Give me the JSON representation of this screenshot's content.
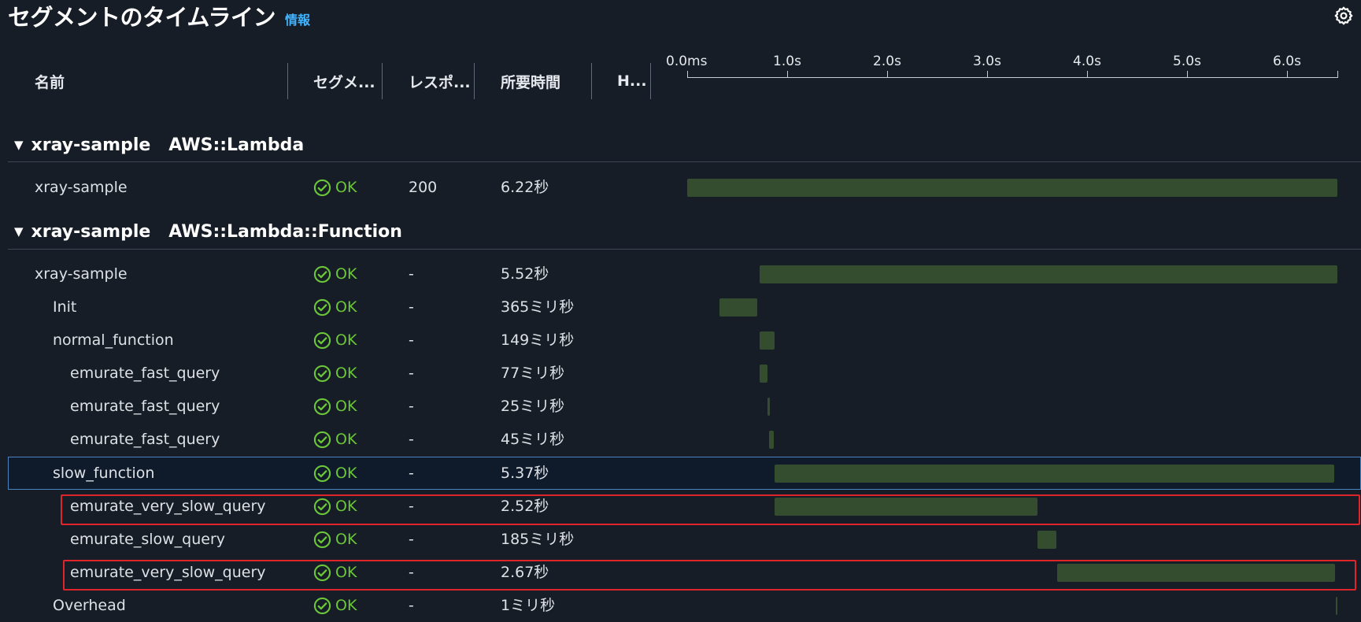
{
  "header": {
    "title": "セグメントのタイムライン",
    "info_link": "情報",
    "settings_icon": "gear-icon"
  },
  "columns": [
    "名前",
    "セグメ...",
    "レスポ...",
    "所要時間",
    "H..."
  ],
  "timeline": {
    "ticks": [
      "0.0ms",
      "1.0s",
      "2.0s",
      "3.0s",
      "4.0s",
      "5.0s",
      "6.0s"
    ],
    "max_seconds": 6.5
  },
  "groups": [
    {
      "name": "xray-sample",
      "type": "AWS::Lambda"
    },
    {
      "name": "xray-sample",
      "type": "AWS::Lambda::Function"
    }
  ],
  "rows": [
    {
      "name": "xray-sample",
      "status": "OK",
      "response": "200",
      "duration": "6.22秒",
      "start_s": 0.0,
      "dur_s": 6.5
    },
    {
      "name": "xray-sample",
      "status": "OK",
      "response": "-",
      "duration": "5.52秒",
      "start_s": 0.72,
      "dur_s": 5.78
    },
    {
      "name": "Init",
      "status": "OK",
      "response": "-",
      "duration": "365ミリ秒",
      "start_s": 0.32,
      "dur_s": 0.38
    },
    {
      "name": "normal_function",
      "status": "OK",
      "response": "-",
      "duration": "149ミリ秒",
      "start_s": 0.72,
      "dur_s": 0.15
    },
    {
      "name": "emurate_fast_query",
      "status": "OK",
      "response": "-",
      "duration": "77ミリ秒",
      "start_s": 0.72,
      "dur_s": 0.08
    },
    {
      "name": "emurate_fast_query",
      "status": "OK",
      "response": "-",
      "duration": "25ミリ秒",
      "start_s": 0.8,
      "dur_s": 0.025
    },
    {
      "name": "emurate_fast_query",
      "status": "OK",
      "response": "-",
      "duration": "45ミリ秒",
      "start_s": 0.82,
      "dur_s": 0.045
    },
    {
      "name": "slow_function",
      "status": "OK",
      "response": "-",
      "duration": "5.37秒",
      "start_s": 0.87,
      "dur_s": 5.6
    },
    {
      "name": "emurate_very_slow_query",
      "status": "OK",
      "response": "-",
      "duration": "2.52秒",
      "start_s": 0.87,
      "dur_s": 2.63
    },
    {
      "name": "emurate_slow_query",
      "status": "OK",
      "response": "-",
      "duration": "185ミリ秒",
      "start_s": 3.5,
      "dur_s": 0.19
    },
    {
      "name": "emurate_very_slow_query",
      "status": "OK",
      "response": "-",
      "duration": "2.67秒",
      "start_s": 3.7,
      "dur_s": 2.78
    },
    {
      "name": "Overhead",
      "status": "OK",
      "response": "-",
      "duration": "1ミリ秒",
      "start_s": 6.48,
      "dur_s": 0.02
    }
  ],
  "colors": {
    "background": "#161d26",
    "bar": "#344d2e",
    "ok": "#6bc63a",
    "link": "#42b4ff",
    "highlight": "#e0242c",
    "selected_border": "#4a84bf"
  }
}
